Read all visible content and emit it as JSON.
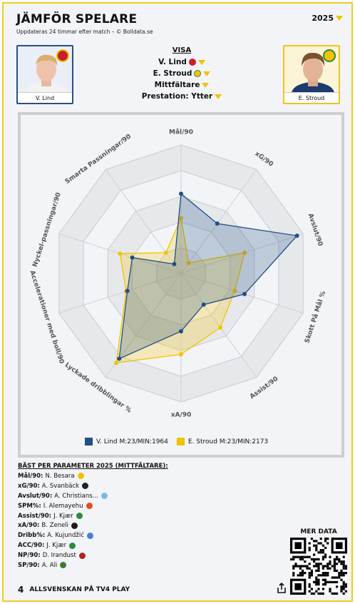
{
  "header": {
    "title": "JÄMFÖR SPELARE",
    "subtitle": "Uppdateras 24 timmar efter match – © Bolldata.se",
    "season": "2025"
  },
  "players": {
    "left": {
      "name": "V. Lind",
      "color": "#1f4f86"
    },
    "right": {
      "name": "E. Stroud",
      "color": "#f2c200"
    }
  },
  "visa": {
    "heading": "VISA",
    "player1": "V. Lind",
    "player2": "E. Stroud",
    "position": "Mittfältare",
    "mode": "Prestation: Ytter"
  },
  "chart_data": {
    "type": "radar",
    "axes": [
      "Mål/90",
      "xG/90",
      "Avslut/90",
      "Skott På Mål %",
      "Assist/90",
      "xA/90",
      "Lyckade dribblingar %",
      "Accelerationer med boll/90",
      "Nyckel-passningar/90",
      "Smarta Passningar/90"
    ],
    "scale": [
      0,
      1
    ],
    "series": [
      {
        "name": "V. Lind M:23/MIN:1964",
        "color": "#1f4f86",
        "values": [
          0.62,
          0.48,
          0.95,
          0.52,
          0.3,
          0.45,
          0.82,
          0.44,
          0.4,
          0.09
        ]
      },
      {
        "name": "E. Stroud M:23/MIN:2173",
        "color": "#f2c200",
        "values": [
          0.43,
          0.1,
          0.52,
          0.44,
          0.52,
          0.63,
          0.86,
          0.45,
          0.5,
          0.2
        ]
      }
    ]
  },
  "best": {
    "heading": "BÄST PER PARAMETER 2025 (MITTFÄLTARE):",
    "rows": [
      {
        "key": "Mål/90:",
        "value": "N. Besara",
        "color": "#f2c200"
      },
      {
        "key": "xG/90:",
        "value": "A. Svanbäck",
        "color": "#222222"
      },
      {
        "key": "Avslut/90:",
        "value": "A. Christians…",
        "color": "#7ab8e6"
      },
      {
        "key": "SPM%:",
        "value": "I. Alemayehu",
        "color": "#d9541b"
      },
      {
        "key": "Assist/90:",
        "value": "J. Kjær",
        "color": "#2f8a3a"
      },
      {
        "key": "xA/90:",
        "value": "B. Zeneli",
        "color": "#1a1a1a"
      },
      {
        "key": "Dribb%:",
        "value": "A. Kujundžić",
        "color": "#4a7fd1"
      },
      {
        "key": "ACC/90:",
        "value": "J. Kjær",
        "color": "#2f8a3a"
      },
      {
        "key": "NP/90:",
        "value": "D. Irandust",
        "color": "#b22222"
      },
      {
        "key": "SP/90:",
        "value": "A. Ali",
        "color": "#3a7d2c"
      }
    ]
  },
  "more": {
    "heading": "MER DATA"
  },
  "footer": {
    "logo": "4",
    "text": "ALLSVENSKAN PÅ TV4 PLAY"
  },
  "icons": {
    "share": "share-icon",
    "qr": "qr-code",
    "dropdown": "dropdown-triangle-icon"
  }
}
